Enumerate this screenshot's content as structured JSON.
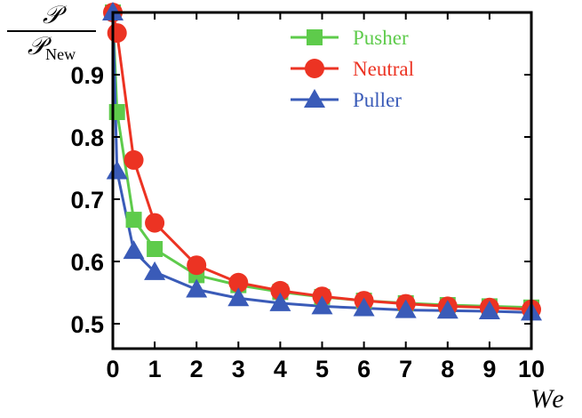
{
  "chart_data": {
    "type": "line",
    "ylabel_num": "𝒫",
    "ylabel_den_main": "𝒫",
    "ylabel_den_sub": "New",
    "xlabel": "We",
    "xlim": [
      0,
      10
    ],
    "ylim": [
      0.46,
      1.0
    ],
    "xticks": [
      "0",
      "1",
      "2",
      "3",
      "4",
      "5",
      "6",
      "7",
      "8",
      "9",
      "10"
    ],
    "yticks": [
      "0.5",
      "0.6",
      "0.7",
      "0.8",
      "0.9"
    ],
    "legend_position": "top-right",
    "series": [
      {
        "name": "Pusher",
        "color": "#5ecb4b",
        "marker": "square",
        "x": [
          0,
          0.1,
          0.5,
          1,
          2,
          3,
          4,
          5,
          6,
          7,
          8,
          9,
          10
        ],
        "y": [
          1.0,
          0.84,
          0.667,
          0.62,
          0.578,
          0.562,
          0.551,
          0.543,
          0.537,
          0.533,
          0.53,
          0.528,
          0.526
        ]
      },
      {
        "name": "Neutral",
        "color": "#ec3323",
        "marker": "circle",
        "x": [
          0,
          0.1,
          0.5,
          1,
          2,
          3,
          4,
          5,
          6,
          7,
          8,
          9,
          10
        ],
        "y": [
          1.0,
          0.967,
          0.763,
          0.662,
          0.594,
          0.566,
          0.553,
          0.544,
          0.537,
          0.532,
          0.528,
          0.526,
          0.523
        ]
      },
      {
        "name": "Puller",
        "color": "#3a5bb8",
        "marker": "triangle",
        "x": [
          0,
          0.1,
          0.5,
          1,
          2,
          3,
          4,
          5,
          6,
          7,
          8,
          9,
          10
        ],
        "y": [
          1.0,
          0.745,
          0.617,
          0.583,
          0.555,
          0.541,
          0.533,
          0.528,
          0.525,
          0.522,
          0.521,
          0.52,
          0.518
        ]
      }
    ]
  }
}
